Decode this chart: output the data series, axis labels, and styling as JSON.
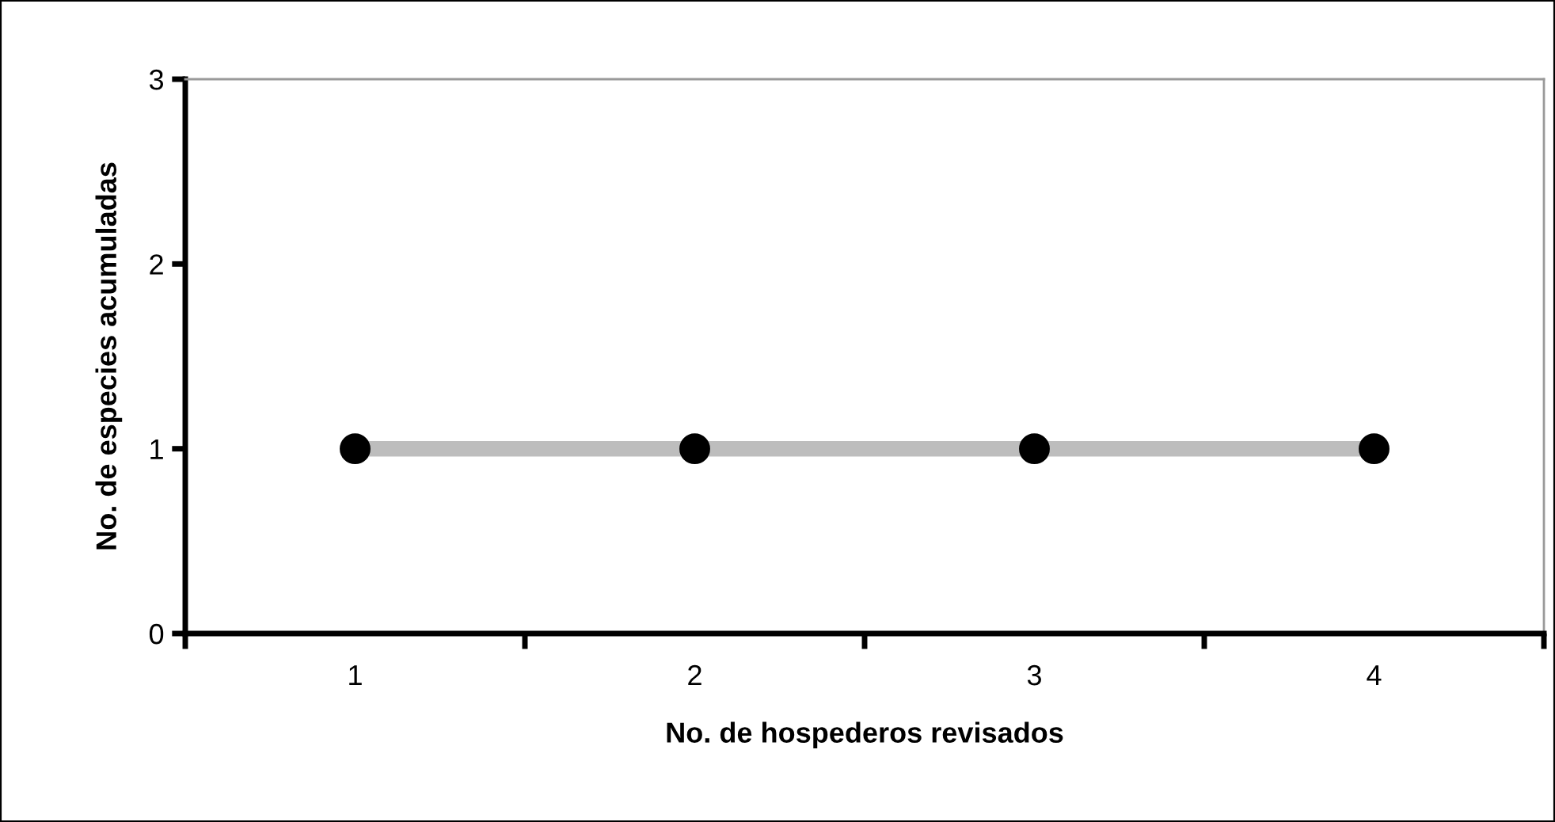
{
  "chart_data": {
    "type": "line",
    "xlabel": "No. de hospederos revisados",
    "ylabel": "No. de especies acumuladas",
    "categories": [
      "1",
      "2",
      "3",
      "4"
    ],
    "series": [
      {
        "color": "#bdbdbd",
        "values": [
          1,
          1,
          1,
          1
        ]
      }
    ],
    "ylim": [
      0,
      3
    ],
    "yticks": [
      0,
      1,
      2,
      3
    ],
    "grid": false,
    "legend": false,
    "marker": "circle",
    "line_style": "solid"
  }
}
